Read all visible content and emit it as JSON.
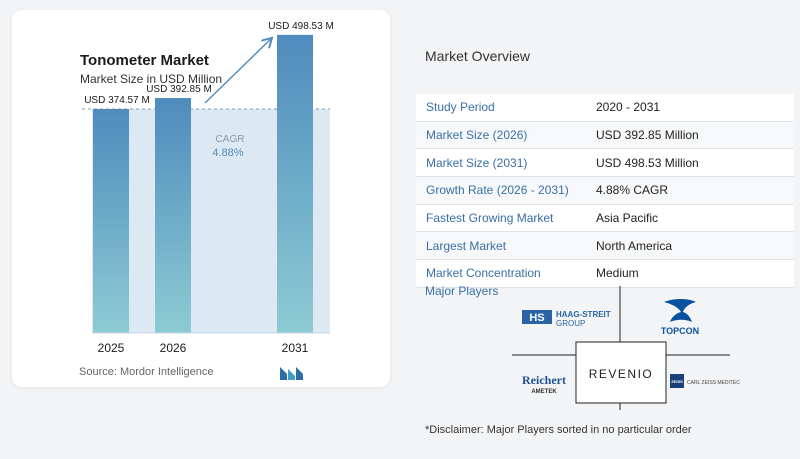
{
  "chart_data": {
    "type": "bar",
    "title": "Tonometer Market",
    "subtitle": "Market Size in USD Million",
    "categories": [
      "2025",
      "2026",
      "2031"
    ],
    "values": [
      374.57,
      392.85,
      498.53
    ],
    "value_labels": [
      "USD 374.57 M",
      "USD 392.85 M",
      "USD 498.53 M"
    ],
    "cagr_label": "CAGR",
    "cagr_value": "4.88%",
    "ylim": [
      0,
      520
    ],
    "colors": {
      "bar_top": "#4f8bbd",
      "bar_bottom": "#8dcbd3",
      "band": "#dde9f2",
      "accent": "#4f8bbd"
    }
  },
  "source": "Source:  Mordor Intelligence",
  "overview": {
    "title": "Market Overview",
    "rows": [
      {
        "label": "Study Period",
        "value": "2020 - 2031"
      },
      {
        "label": "Market Size (2026)",
        "value": "USD 392.85 Million"
      },
      {
        "label": "Market Size (2031)",
        "value": "USD 498.53 Million"
      },
      {
        "label": "Growth Rate (2026 - 2031)",
        "value": "4.88% CAGR"
      },
      {
        "label": "Fastest Growing Market",
        "value": "Asia Pacific"
      },
      {
        "label": "Largest Market",
        "value": "North America"
      },
      {
        "label": "Market Concentration",
        "value": "Medium"
      }
    ],
    "players_title": "Major Players",
    "players": {
      "haag": {
        "mark": "HS",
        "line1": "HAAG-STREIT",
        "line2": "GROUP"
      },
      "topcon": {
        "name": "TOPCON"
      },
      "reichert": {
        "name": "Reichert",
        "sub": "AMETEK"
      },
      "revenio": {
        "name": "REVENIO"
      },
      "zeiss": {
        "mark": "ZEISS",
        "name": "CARL ZEISS MEDITEC"
      }
    },
    "disclaimer": "*Disclaimer: Major Players sorted in no particular order"
  }
}
